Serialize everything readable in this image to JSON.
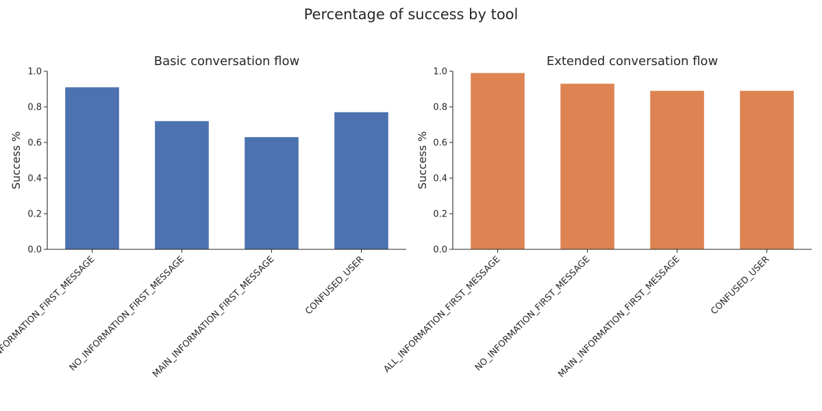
{
  "figure": {
    "title": "Percentage of success by tool"
  },
  "chart_data": [
    {
      "type": "bar",
      "title": "Basic conversation flow",
      "xlabel": "",
      "ylabel": "Success %",
      "ylim": [
        0,
        1
      ],
      "yticks": [
        "0.0",
        "0.2",
        "0.4",
        "0.6",
        "0.8",
        "1.0"
      ],
      "categories": [
        "ALL_INFORMATION_FIRST_MESSAGE",
        "NO_INFORMATION_FIRST_MESSAGE",
        "MAIN_INFORMATION_FIRST_MESSAGE",
        "CONFUSED_USER"
      ],
      "values": [
        0.91,
        0.72,
        0.63,
        0.77
      ],
      "color": "#4c72b0",
      "grid": false,
      "legend": "none"
    },
    {
      "type": "bar",
      "title": "Extended conversation flow",
      "xlabel": "",
      "ylabel": "Success %",
      "ylim": [
        0,
        1
      ],
      "yticks": [
        "0.0",
        "0.2",
        "0.4",
        "0.6",
        "0.8",
        "1.0"
      ],
      "categories": [
        "ALL_INFORMATION_FIRST_MESSAGE",
        "NO_INFORMATION_FIRST_MESSAGE",
        "MAIN_INFORMATION_FIRST_MESSAGE",
        "CONFUSED_USER"
      ],
      "values": [
        0.99,
        0.93,
        0.89,
        0.89
      ],
      "color": "#dd8452",
      "grid": false,
      "legend": "none"
    }
  ]
}
